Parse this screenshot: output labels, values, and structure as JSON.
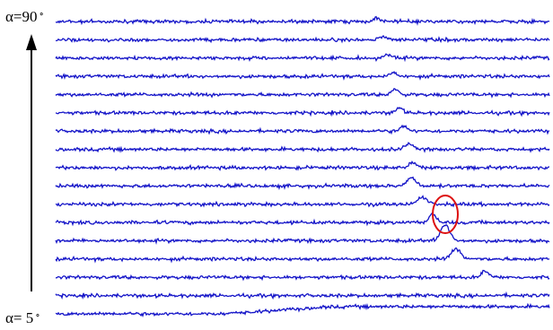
{
  "chart_data": {
    "type": "line",
    "title": "",
    "labels": {
      "top": "α=90",
      "bottom": "α= 5",
      "degree_mark": "∘"
    },
    "series_count": 17,
    "line_color": "#1414c8",
    "highlight_color": "#dd1111",
    "axis_arrow": "up",
    "annotation": "ellipse"
  }
}
